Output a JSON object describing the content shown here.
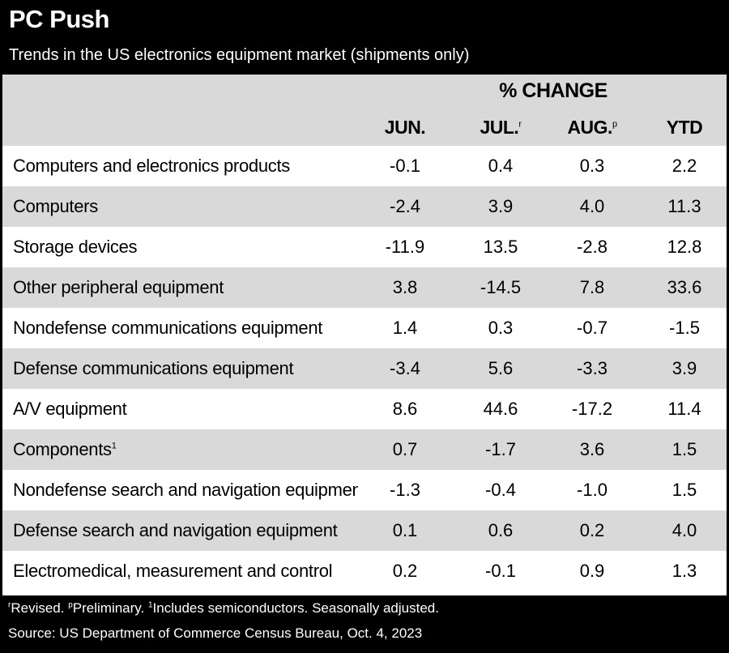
{
  "title": "PC Push",
  "subtitle": "Trends in the US electronics equipment market (shipments only)",
  "footnote": {
    "revised_mark": "r",
    "revised": "Revised. ",
    "prelim_mark": "p",
    "prelim": "Preliminary. ",
    "one_mark": "1",
    "note": "Includes semiconductors. Seasonally adjusted."
  },
  "source": "Source: US Department of Commerce Census Bureau, Oct. 4, 2023",
  "colors": {
    "background": "#000000",
    "stripe": "#d9d9d9",
    "cell": "#ffffff"
  },
  "chart_data": {
    "type": "table",
    "group_header": "% CHANGE",
    "columns": [
      {
        "label": "JUN.",
        "mark": ""
      },
      {
        "label": "JUL.",
        "mark": "r"
      },
      {
        "label": "AUG.",
        "mark": "p"
      },
      {
        "label": "YTD",
        "mark": ""
      }
    ],
    "rows": [
      {
        "label": "Computers and electronics products",
        "mark": "",
        "values": [
          "-0.1",
          "0.4",
          "0.3",
          "2.2"
        ]
      },
      {
        "label": "Computers",
        "mark": "",
        "values": [
          "-2.4",
          "3.9",
          "4.0",
          "11.3"
        ]
      },
      {
        "label": "Storage devices",
        "mark": "",
        "values": [
          "-11.9",
          "13.5",
          "-2.8",
          "12.8"
        ]
      },
      {
        "label": "Other peripheral equipment",
        "mark": "",
        "values": [
          "3.8",
          "-14.5",
          "7.8",
          "33.6"
        ]
      },
      {
        "label": "Nondefense communications equipment",
        "mark": "",
        "values": [
          "1.4",
          "0.3",
          "-0.7",
          "-1.5"
        ]
      },
      {
        "label": "Defense communications equipment",
        "mark": "",
        "values": [
          "-3.4",
          "5.6",
          "-3.3",
          "3.9"
        ]
      },
      {
        "label": "A/V equipment",
        "mark": "",
        "values": [
          "8.6",
          "44.6",
          "-17.2",
          "11.4"
        ]
      },
      {
        "label": "Components",
        "mark": "1",
        "values": [
          "0.7",
          "-1.7",
          "3.6",
          "1.5"
        ]
      },
      {
        "label": "Nondefense search and navigation equipment",
        "mark": "",
        "values": [
          "-1.3",
          "-0.4",
          "-1.0",
          "1.5"
        ]
      },
      {
        "label": "Defense search and navigation equipment",
        "mark": "",
        "values": [
          "0.1",
          "0.6",
          "0.2",
          "4.0"
        ]
      },
      {
        "label": "Electromedical, measurement and control",
        "mark": "",
        "values": [
          "0.2",
          "-0.1",
          "0.9",
          "1.3"
        ]
      }
    ]
  }
}
